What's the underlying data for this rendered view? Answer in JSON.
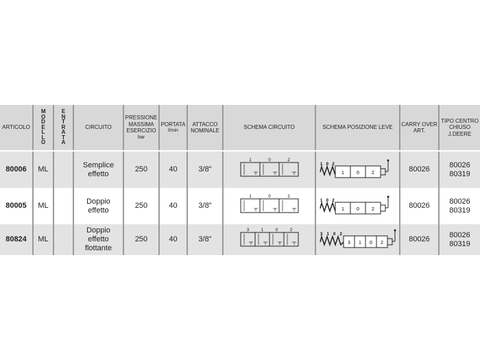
{
  "headers": {
    "articolo": "ARTICOLO",
    "modello": "MODELLO",
    "entrata": "ENTRATA",
    "circuito": "CIRCUITO",
    "pressione": "PRESSIONE MASSIMA ESERCIZIO",
    "pressione_unit": "bar",
    "portata": "PORTATA",
    "portata_unit": "l/min",
    "attacco": "ATTACCO NOMINALE",
    "schema_circuito": "SCHEMA CIRCUITO",
    "schema_leve": "SCHEMA POSIZIONE LEVE",
    "carry_over": "CARRY OVER ART.",
    "tipo_centro": "TIPO CENTRO CHIUSO J.DEERE"
  },
  "rows": [
    {
      "articolo": "80006",
      "modello": "ML",
      "entrata": "",
      "circuito": "Semplice effetto",
      "pressione": "250",
      "portata": "40",
      "attacco": "3/8\"",
      "schema_labels": [
        "1",
        "0",
        "2"
      ],
      "leve_labels": [
        "1",
        "0",
        "2"
      ],
      "carry_over": "80026",
      "tipo_centro": [
        "80026",
        "80319"
      ]
    },
    {
      "articolo": "80005",
      "modello": "ML",
      "entrata": "",
      "circuito": "Doppio effetto",
      "pressione": "250",
      "portata": "40",
      "attacco": "3/8\"",
      "schema_labels": [
        "1",
        "0",
        "2"
      ],
      "leve_labels": [
        "1",
        "0",
        "2"
      ],
      "carry_over": "80026",
      "tipo_centro": [
        "80026",
        "80319"
      ]
    },
    {
      "articolo": "80824",
      "modello": "ML",
      "entrata": "",
      "circuito": "Doppio effetto flottante",
      "pressione": "250",
      "portata": "40",
      "attacco": "3/8\"",
      "schema_labels": [
        "3",
        "1",
        "0",
        "2"
      ],
      "leve_labels": [
        "3",
        "1",
        "0",
        "2"
      ],
      "carry_over": "80026",
      "tipo_centro": [
        "80026",
        "80319"
      ]
    }
  ]
}
